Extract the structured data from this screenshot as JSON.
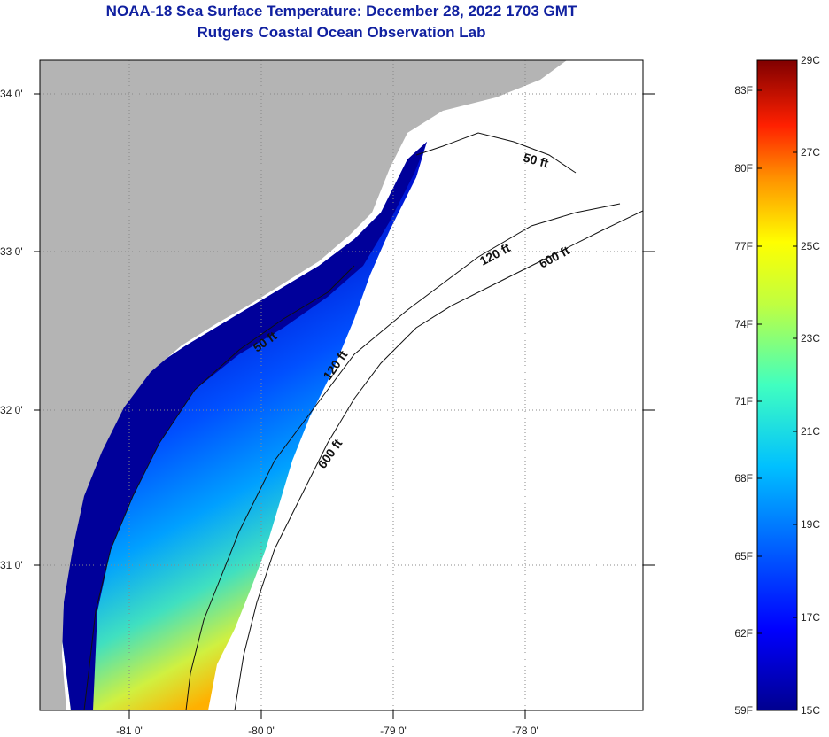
{
  "title": "NOAA-18 Sea Surface Temperature:  December 28, 2022 1703 GMT",
  "subtitle": "Rutgers Coastal Ocean Observation Lab",
  "map": {
    "lat_labels": [
      "34 0'",
      "33 0'",
      "32 0'",
      "31 0'"
    ],
    "lon_labels": [
      "-81 0'",
      "-80 0'",
      "-79 0'",
      "-78 0'"
    ],
    "contours": [
      "50 ft",
      "120 ft",
      "600 ft"
    ]
  },
  "legend": {
    "fahrenheit": [
      "83F",
      "80F",
      "77F",
      "74F",
      "71F",
      "68F",
      "65F",
      "62F",
      "59F"
    ],
    "celsius": [
      "29C",
      "27C",
      "25C",
      "23C",
      "21C",
      "19C",
      "17C",
      "15C"
    ],
    "colors": [
      "#00008f",
      "#0000ff",
      "#0080ff",
      "#00ffff",
      "#80ff80",
      "#ffff00",
      "#ff8000",
      "#ff0000",
      "#800000"
    ]
  },
  "colors": {
    "land": "#b4b4b4",
    "ocean_nodata": "#ffffff",
    "title": "#1020a0"
  }
}
